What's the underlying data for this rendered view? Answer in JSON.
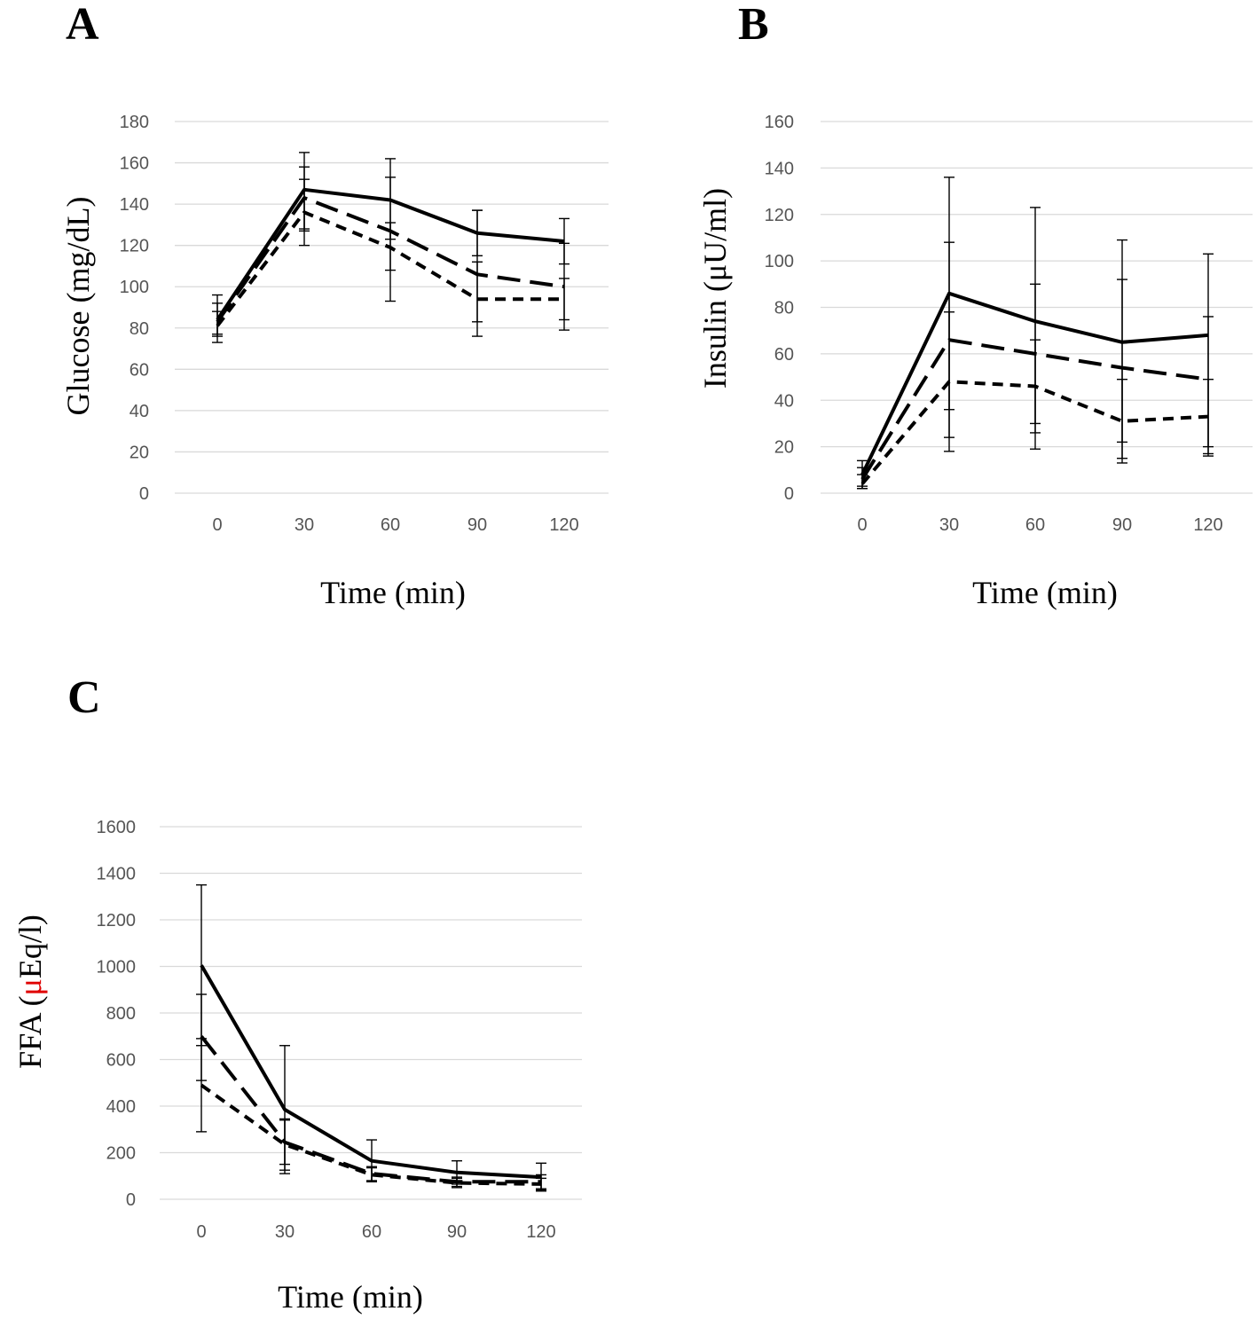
{
  "chart_data": [
    {
      "type": "line",
      "panel_label": "A",
      "title": "",
      "xlabel": "Time (min)",
      "ylabel": "Glucose (mg/dL)",
      "x": [
        0,
        30,
        60,
        90,
        120
      ],
      "x_tick_labels": [
        "0",
        "30",
        "60",
        "90",
        "120"
      ],
      "y_tick_labels": [
        "0",
        "20",
        "40",
        "60",
        "80",
        "100",
        "120",
        "140",
        "160",
        "180"
      ],
      "ylim": [
        0,
        180
      ],
      "grid": true,
      "series": [
        {
          "name": "solid",
          "line_style": "solid",
          "values": [
            84,
            147,
            142,
            126,
            122
          ],
          "err_low": [
            76,
            128,
            123,
            115,
            111
          ],
          "err_high": [
            92,
            165,
            162,
            137,
            133
          ]
        },
        {
          "name": "long-dash",
          "line_style": "long-dash",
          "values": [
            83,
            143,
            127,
            106,
            100
          ],
          "err_low": [
            77,
            127,
            93,
            83,
            79
          ],
          "err_high": [
            96,
            158,
            153,
            137,
            121
          ]
        },
        {
          "name": "short-dash",
          "line_style": "short-dash",
          "values": [
            81,
            136,
            119,
            94,
            94
          ],
          "err_low": [
            73,
            120,
            108,
            76,
            84
          ],
          "err_high": [
            88,
            152,
            131,
            112,
            104
          ]
        }
      ]
    },
    {
      "type": "line",
      "panel_label": "B",
      "title": "",
      "xlabel": "Time (min)",
      "ylabel": "Insulin (μU/ml)",
      "x": [
        0,
        30,
        60,
        90,
        120
      ],
      "x_tick_labels": [
        "0",
        "30",
        "60",
        "90",
        "120"
      ],
      "y_tick_labels": [
        "0",
        "20",
        "40",
        "60",
        "80",
        "100",
        "120",
        "140",
        "160"
      ],
      "ylim": [
        0,
        160
      ],
      "grid": true,
      "series": [
        {
          "name": "solid",
          "line_style": "solid",
          "values": [
            8,
            86,
            74,
            65,
            68
          ],
          "err_low": [
            2,
            36,
            30,
            22,
            20
          ],
          "err_high": [
            14,
            136,
            123,
            109,
            103
          ]
        },
        {
          "name": "long-dash",
          "line_style": "long-dash",
          "values": [
            6,
            66,
            60,
            54,
            49
          ],
          "err_low": [
            3,
            24,
            19,
            15,
            16
          ],
          "err_high": [
            11,
            108,
            90,
            92,
            76
          ]
        },
        {
          "name": "short-dash",
          "line_style": "short-dash",
          "values": [
            4,
            48,
            46,
            31,
            33
          ],
          "err_low": [
            2,
            18,
            26,
            13,
            17
          ],
          "err_high": [
            8,
            78,
            66,
            49,
            49
          ]
        }
      ]
    },
    {
      "type": "line",
      "panel_label": "C",
      "title": "",
      "xlabel": "Time (min)",
      "ylabel_parts": [
        "FFA (",
        "μ",
        "Eq/l)"
      ],
      "ylabel_accent": "#e00000",
      "x": [
        0,
        30,
        60,
        90,
        120
      ],
      "x_tick_labels": [
        "0",
        "30",
        "60",
        "90",
        "120"
      ],
      "y_tick_labels": [
        "0",
        "200",
        "400",
        "600",
        "800",
        "1000",
        "1200",
        "1400",
        "1600"
      ],
      "ylim": [
        0,
        1600
      ],
      "grid": true,
      "series": [
        {
          "name": "solid",
          "line_style": "solid",
          "values": [
            1005,
            385,
            165,
            115,
            95
          ],
          "err_low": [
            660,
            110,
            75,
            65,
            35
          ],
          "err_high": [
            1350,
            660,
            255,
            165,
            155
          ]
        },
        {
          "name": "long-dash",
          "line_style": "long-dash",
          "values": [
            700,
            245,
            110,
            75,
            75
          ],
          "err_low": [
            510,
            150,
            80,
            55,
            45
          ],
          "err_high": [
            880,
            340,
            140,
            95,
            105
          ]
        },
        {
          "name": "short-dash",
          "line_style": "short-dash",
          "values": [
            490,
            235,
            105,
            70,
            65
          ],
          "err_low": [
            290,
            125,
            75,
            50,
            40
          ],
          "err_high": [
            690,
            345,
            135,
            90,
            90
          ]
        }
      ]
    }
  ]
}
